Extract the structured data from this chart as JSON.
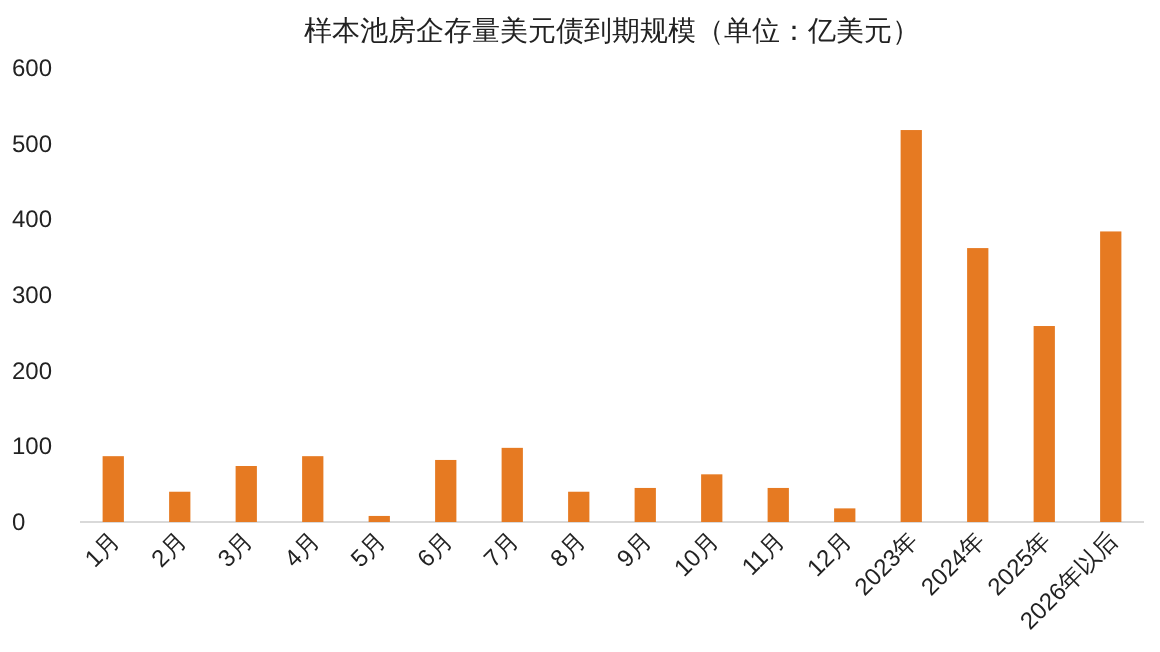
{
  "chart_data": {
    "type": "bar",
    "title": "样本池房企存量美元债到期规模（单位：亿美元）",
    "categories": [
      "1月",
      "2月",
      "3月",
      "4月",
      "5月",
      "6月",
      "7月",
      "8月",
      "9月",
      "10月",
      "11月",
      "12月",
      "2023年",
      "2024年",
      "2025年",
      "2026年以后"
    ],
    "values": [
      87,
      40,
      74,
      87,
      8,
      82,
      98,
      40,
      45,
      63,
      45,
      18,
      518,
      362,
      259,
      384
    ],
    "color": "#e67a22",
    "ylim": [
      0,
      600
    ],
    "yticks": [
      0,
      100,
      200,
      300,
      400,
      500,
      600
    ],
    "grid": false
  }
}
